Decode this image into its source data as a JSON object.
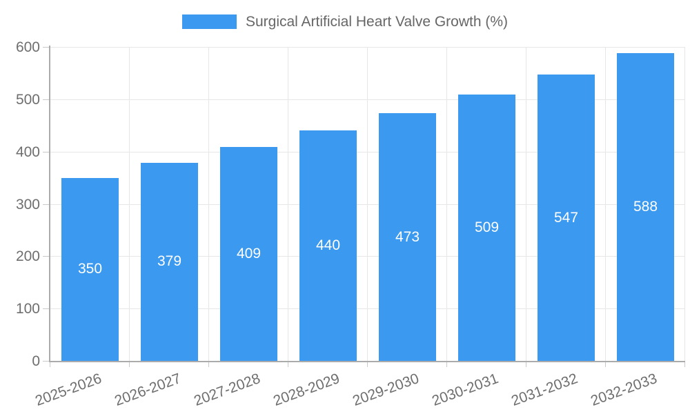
{
  "legend": {
    "label": "Surgical Artificial Heart Valve Growth (%)"
  },
  "colors": {
    "bar": "#3b99ef",
    "axis_line": "#ababab",
    "gridline": "#e6e6e6",
    "tick_mark": "#c9c9c9",
    "tick_label_text": "#6e6e6e",
    "legend_text": "#666666",
    "value_label_text": "#ffffff",
    "background": "#ffffff"
  },
  "chart_data": {
    "type": "bar",
    "title": "Surgical Artificial Heart Valve Growth (%)",
    "categories": [
      "2025-2026",
      "2026-2027",
      "2027-2028",
      "2028-2029",
      "2029-2030",
      "2030-2031",
      "2031-2032",
      "2032-2033"
    ],
    "series": [
      {
        "name": "Surgical Artificial Heart Valve Growth (%)",
        "values": [
          350,
          379,
          409,
          440,
          473,
          509,
          547,
          588
        ]
      }
    ],
    "xlabel": "",
    "ylabel": "",
    "ylim": [
      0,
      600
    ],
    "ytick_step": 100,
    "yticks": [
      0,
      100,
      200,
      300,
      400,
      500,
      600
    ],
    "grid": true,
    "legend_position": "top",
    "value_labels": "inside-center",
    "x_label_rotation_deg": -20
  }
}
